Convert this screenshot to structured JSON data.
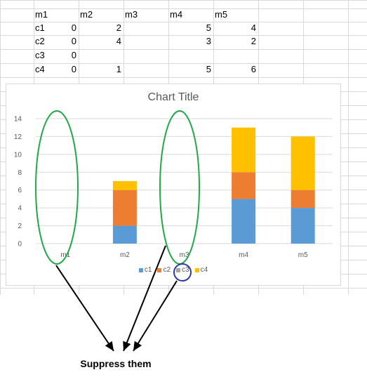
{
  "spreadsheet": {
    "columns": [
      "m1",
      "m2",
      "m3",
      "m4",
      "m5"
    ],
    "rows": [
      {
        "label": "c1",
        "values": [
          "0",
          "2",
          "",
          "5",
          "4"
        ]
      },
      {
        "label": "c2",
        "values": [
          "0",
          "4",
          "",
          "3",
          "2"
        ]
      },
      {
        "label": "c3",
        "values": [
          "0",
          "",
          "",
          "",
          ""
        ]
      },
      {
        "label": "c4",
        "values": [
          "0",
          "1",
          "",
          "5",
          "6"
        ]
      }
    ]
  },
  "chart_data": {
    "type": "bar",
    "stacked": true,
    "title": "Chart Title",
    "categories": [
      "m1",
      "m2",
      "m3",
      "m4",
      "m5"
    ],
    "series": [
      {
        "name": "c1",
        "color": "#5b9bd5",
        "values": [
          0,
          2,
          null,
          5,
          4
        ]
      },
      {
        "name": "c2",
        "color": "#ed7d31",
        "values": [
          0,
          4,
          null,
          3,
          2
        ]
      },
      {
        "name": "c3",
        "color": "#a5a5a5",
        "values": [
          0,
          null,
          null,
          null,
          null
        ]
      },
      {
        "name": "c4",
        "color": "#ffc000",
        "values": [
          0,
          1,
          null,
          5,
          6
        ]
      }
    ],
    "ylim": [
      0,
      14
    ],
    "yticks": [
      0,
      2,
      4,
      6,
      8,
      10,
      12,
      14
    ],
    "grid": true,
    "legend": "bottom"
  },
  "annotation": {
    "text": "Suppress them",
    "ellipse_color": "#22a84a",
    "circle_color": "#2e3aa8",
    "arrow_color": "#000000"
  }
}
